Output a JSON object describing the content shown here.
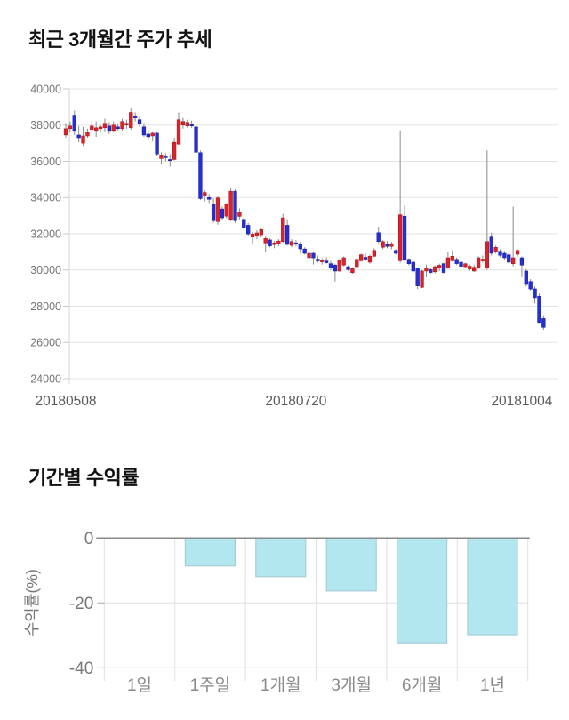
{
  "page": {
    "background": "#ffffff"
  },
  "price_chart": {
    "title": "최근 3개월간 주가 추세",
    "chart_data": {
      "type": "candlestick",
      "title": "최근 3개월간 주가 추세",
      "ylim": [
        24000,
        40000
      ],
      "y_ticks": [
        40000,
        38000,
        36000,
        34000,
        32000,
        30000,
        28000,
        26000,
        24000
      ],
      "x_tick_labels": [
        "20180508",
        "20180720",
        "20181004"
      ],
      "x_tick_indices": [
        0,
        53,
        105
      ],
      "grid_on": true,
      "up_color": "#d8232e",
      "up_border_color": "#a31515",
      "down_color": "#2430cf",
      "down_border_color": "#161c9c",
      "wick_color": "#8a8a8a",
      "grid_color": "#e3e3e3",
      "axis_line_color": "#d6d6d6",
      "y_label_color": "#757575",
      "x_label_color": "#5a5a5a",
      "candles_ohlc": [
        [
          37450,
          38100,
          37300,
          37800
        ],
        [
          37800,
          38200,
          37600,
          37950
        ],
        [
          38550,
          38800,
          37450,
          37700
        ],
        [
          37450,
          37950,
          37050,
          37300
        ],
        [
          37000,
          37900,
          36850,
          37400
        ],
        [
          37400,
          37800,
          37300,
          37600
        ],
        [
          37750,
          38300,
          37550,
          37950
        ],
        [
          37700,
          38200,
          37350,
          37850
        ],
        [
          37800,
          38000,
          37600,
          37900
        ],
        [
          37850,
          38350,
          37650,
          38100
        ],
        [
          37950,
          38150,
          37500,
          37700
        ],
        [
          37700,
          38200,
          37600,
          38000
        ],
        [
          37900,
          38100,
          37700,
          37800
        ],
        [
          37800,
          38350,
          37700,
          38200
        ],
        [
          38000,
          38300,
          37800,
          38100
        ],
        [
          37850,
          38950,
          37750,
          38700
        ],
        [
          38500,
          38700,
          38200,
          38400
        ],
        [
          38300,
          38450,
          37900,
          38050
        ],
        [
          37900,
          38100,
          37350,
          37450
        ],
        [
          37500,
          37700,
          37200,
          37350
        ],
        [
          37400,
          37600,
          37100,
          37550
        ],
        [
          37550,
          37650,
          36300,
          36400
        ],
        [
          36150,
          36500,
          35850,
          36350
        ],
        [
          36300,
          36450,
          36000,
          36200
        ],
        [
          36100,
          36400,
          35700,
          36050
        ],
        [
          36100,
          37300,
          36050,
          37050
        ],
        [
          36950,
          38700,
          36900,
          38300
        ],
        [
          38000,
          38400,
          37800,
          38200
        ],
        [
          37950,
          38300,
          37850,
          38150
        ],
        [
          38050,
          38250,
          37850,
          37950
        ],
        [
          37900,
          38000,
          36350,
          36500
        ],
        [
          36480,
          36600,
          33860,
          33940
        ],
        [
          34100,
          34400,
          33780,
          34280
        ],
        [
          34000,
          34200,
          33700,
          33900
        ],
        [
          33620,
          33950,
          32600,
          32720
        ],
        [
          32670,
          34100,
          32500,
          33980
        ],
        [
          33370,
          33500,
          32750,
          32880
        ],
        [
          32970,
          33700,
          32850,
          33620
        ],
        [
          32800,
          34500,
          32700,
          34350
        ],
        [
          34350,
          34450,
          32600,
          32720
        ],
        [
          32960,
          33400,
          32800,
          33210
        ],
        [
          32800,
          32900,
          32200,
          32310
        ],
        [
          32470,
          32600,
          31900,
          31990
        ],
        [
          31820,
          32100,
          31400,
          31990
        ],
        [
          31900,
          32200,
          31700,
          32050
        ],
        [
          31950,
          32350,
          31800,
          32230
        ],
        [
          31490,
          31850,
          31000,
          31740
        ],
        [
          31660,
          31750,
          31250,
          31330
        ],
        [
          31400,
          31600,
          31200,
          31500
        ],
        [
          31450,
          31700,
          31300,
          31600
        ],
        [
          31570,
          33100,
          31500,
          32880
        ],
        [
          32470,
          32800,
          31350,
          31410
        ],
        [
          31360,
          31700,
          31250,
          31570
        ],
        [
          31500,
          31650,
          31300,
          31450
        ],
        [
          31450,
          31550,
          30900,
          31160
        ],
        [
          31160,
          31250,
          30850,
          30920
        ],
        [
          30675,
          31000,
          30430,
          30920
        ],
        [
          30920,
          31000,
          30300,
          30670
        ],
        [
          30600,
          30800,
          30400,
          30500
        ],
        [
          30450,
          30650,
          30300,
          30550
        ],
        [
          30500,
          30700,
          30350,
          30400
        ],
        [
          30350,
          30500,
          30000,
          30100
        ],
        [
          30266,
          30350,
          29365,
          29938
        ],
        [
          29940,
          30600,
          29900,
          30510
        ],
        [
          30270,
          30750,
          30200,
          30675
        ],
        [
          30180,
          30250,
          29950,
          30020
        ],
        [
          29850,
          30150,
          29800,
          30100
        ],
        [
          30180,
          30650,
          30100,
          30590
        ],
        [
          30510,
          30900,
          30450,
          30840
        ],
        [
          30700,
          30900,
          30500,
          30600
        ],
        [
          30430,
          30850,
          30350,
          30760
        ],
        [
          30760,
          31200,
          30700,
          31080
        ],
        [
          32060,
          32390,
          31480,
          31570
        ],
        [
          31250,
          31650,
          31150,
          31570
        ],
        [
          31400,
          31600,
          31200,
          31300
        ],
        [
          31300,
          31550,
          31150,
          31450
        ],
        [
          31080,
          31150,
          30850,
          30920
        ],
        [
          30510,
          37700,
          30400,
          33050
        ],
        [
          32970,
          33570,
          30500,
          30590
        ],
        [
          30590,
          30650,
          30250,
          30345
        ],
        [
          30430,
          30500,
          29850,
          29940
        ],
        [
          30100,
          30150,
          28950,
          29120
        ],
        [
          29040,
          30000,
          29000,
          29940
        ],
        [
          29940,
          30300,
          29600,
          30100
        ],
        [
          30020,
          30100,
          29800,
          29860
        ],
        [
          29900,
          30250,
          29800,
          30180
        ],
        [
          30100,
          30350,
          29950,
          30260
        ],
        [
          30350,
          30400,
          29800,
          29860
        ],
        [
          30100,
          31000,
          30050,
          30675
        ],
        [
          30510,
          31080,
          30450,
          30760
        ],
        [
          30590,
          30700,
          30270,
          30350
        ],
        [
          30430,
          30500,
          30100,
          30200
        ],
        [
          30180,
          30400,
          30100,
          30345
        ],
        [
          30050,
          30300,
          29950,
          30210
        ],
        [
          29940,
          30300,
          29900,
          30150
        ],
        [
          30150,
          30750,
          30050,
          30675
        ],
        [
          30500,
          30800,
          30400,
          30600
        ],
        [
          30100,
          36600,
          30000,
          31570
        ],
        [
          31820,
          32060,
          30800,
          30920
        ],
        [
          31000,
          31350,
          30900,
          31250
        ],
        [
          31035,
          31150,
          30700,
          30810
        ],
        [
          30920,
          31050,
          30550,
          30675
        ],
        [
          30840,
          30950,
          30300,
          30430
        ],
        [
          30345,
          33500,
          30200,
          30675
        ],
        [
          30870,
          31150,
          30750,
          31080
        ],
        [
          30675,
          30750,
          29610,
          30270
        ],
        [
          29940,
          30050,
          29100,
          29200
        ],
        [
          29365,
          29500,
          28875,
          28950
        ],
        [
          28960,
          29100,
          28150,
          28470
        ],
        [
          28550,
          28700,
          27080,
          27100
        ],
        [
          27320,
          27500,
          26700,
          26830
        ]
      ]
    }
  },
  "returns_chart": {
    "title": "기간별 수익률",
    "chart_data": {
      "type": "bar",
      "categories": [
        "1일",
        "1주일",
        "1개월",
        "3개월",
        "6개월",
        "1년"
      ],
      "values": [
        0,
        -8.6,
        -11.9,
        -16.3,
        -32.3,
        -29.8
      ],
      "ylabel": "수익률(%)",
      "y_ticks": [
        0,
        -20,
        -40
      ],
      "ylim": [
        -40,
        0
      ],
      "grid_on": true,
      "bar_color": "#b2e7f0",
      "bar_border_color": "#a6ccd7",
      "grid_color": "#e0e0e0",
      "zero_line_color": "#8a8a8a",
      "tick_color": "#aaaaaa",
      "label_color": "#8a8a8a",
      "ylabel_color": "#777777"
    }
  }
}
